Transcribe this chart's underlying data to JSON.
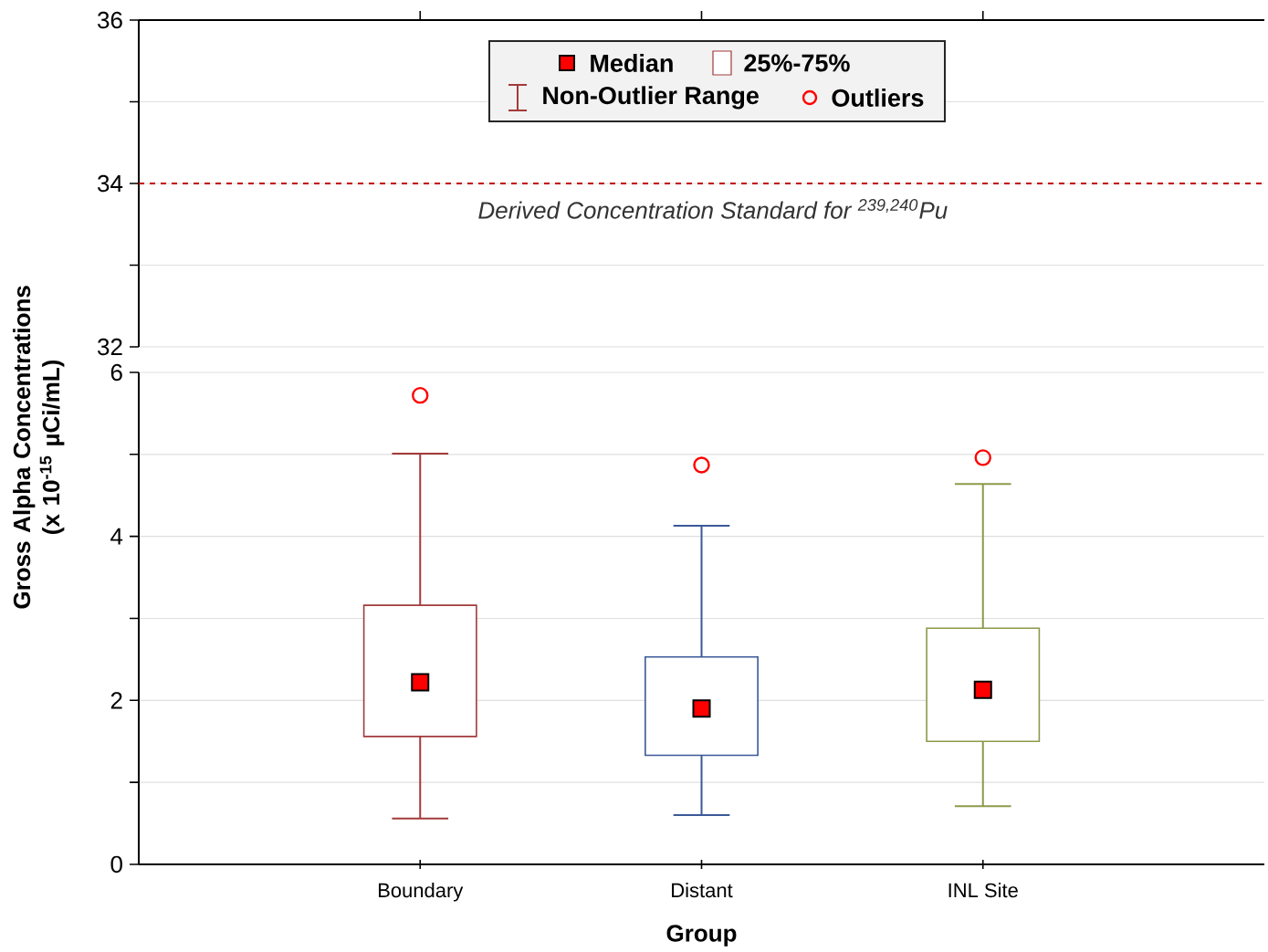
{
  "chart_data": [
    {
      "type": "box",
      "categories": [
        null,
        null,
        null
      ],
      "tick_labels": "y",
      "ylim": [
        32,
        36
      ],
      "yticks": [
        32,
        {
          "value": 33,
          "label": null
        },
        34,
        {
          "value": 35,
          "label": null
        },
        36
      ],
      "grid": "y",
      "annotations": [
        "Median",
        "25%-75%",
        "Non-Outlier Range",
        "Outliers"
      ],
      "ref_lines": [
        {
          "axis": "y",
          "value": 34,
          "label": "Derived Concentration Standard for $^{239,240}$Pu",
          "color": "#c00000",
          "line_style": "dashed"
        }
      ]
    },
    {
      "type": "box",
      "categories": [
        "Boundary",
        "Distant",
        "INL Site"
      ],
      "xlabel": "Group",
      "ylabel": "Gross Alpha Concentrations (x 10$^{-15}$ µCi/mL)",
      "ylim": [
        0,
        6
      ],
      "yticks": [
        0,
        {
          "value": 1,
          "label": null
        },
        2,
        {
          "value": 3,
          "label": null
        },
        4,
        {
          "value": 5,
          "label": null
        },
        6
      ],
      "grid": "y",
      "colors": [
        "#a33a3a",
        "#3b5998",
        "#8c9a4a"
      ],
      "boxes": [
        {
          "low": 0.56,
          "q1": 1.56,
          "median": 2.22,
          "q3": 3.16,
          "high": 5.01,
          "outliers": [
            5.72
          ]
        },
        {
          "low": 0.6,
          "q1": 1.33,
          "median": 1.9,
          "q3": 2.53,
          "high": 4.13,
          "outliers": [
            4.87
          ]
        },
        {
          "low": 0.71,
          "q1": 1.5,
          "median": 2.13,
          "q3": 2.88,
          "high": 4.64,
          "outliers": [
            4.96
          ]
        }
      ]
    }
  ]
}
